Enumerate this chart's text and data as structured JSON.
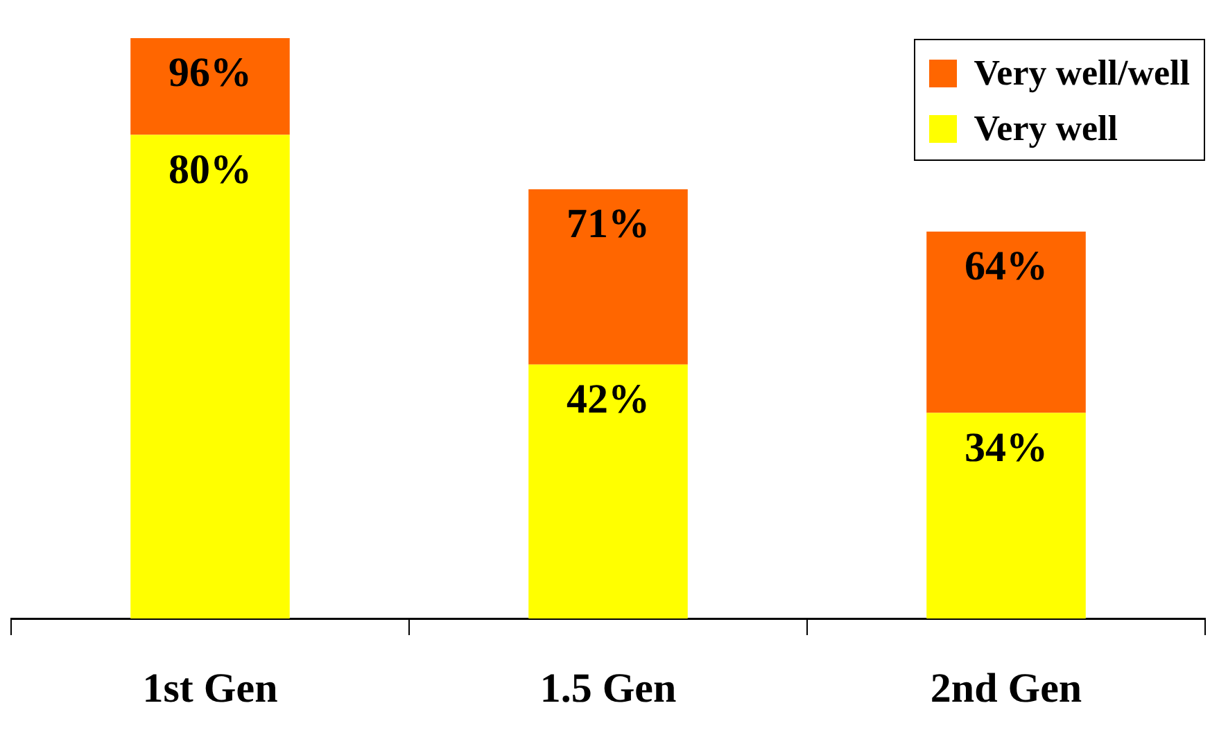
{
  "chart_data": {
    "type": "bar",
    "stacked": true,
    "categories": [
      "1st Gen",
      "1.5 Gen",
      "2nd Gen"
    ],
    "series": [
      {
        "name": "Very well",
        "color": "#ffff00",
        "values": [
          80,
          42,
          34
        ],
        "value_labels": [
          "80%",
          "42%",
          "34%"
        ]
      },
      {
        "name": "Very well/well",
        "color": "#ff6600",
        "values": [
          16,
          29,
          30
        ]
      }
    ],
    "totals": [
      "96%",
      "71%",
      "64%"
    ],
    "legend": "top right",
    "grid": false,
    "tick_labels": "x"
  }
}
